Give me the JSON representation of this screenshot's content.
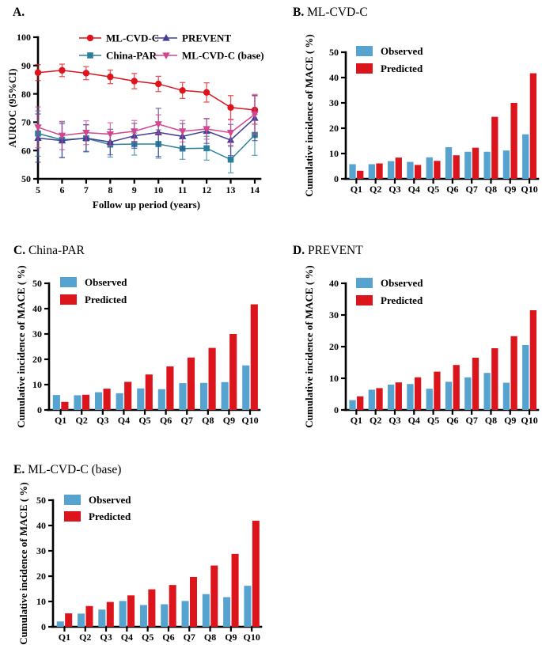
{
  "figure": {
    "panels": [
      {
        "id": "A",
        "label": "A.",
        "name": ""
      },
      {
        "id": "B",
        "label": "B.",
        "name": "ML-CVD-C"
      },
      {
        "id": "C",
        "label": "C.",
        "name": "China-PAR"
      },
      {
        "id": "D",
        "label": "D.",
        "name": "PREVENT"
      },
      {
        "id": "E",
        "label": "E.",
        "name": "ML-CVD-C (base)"
      }
    ]
  },
  "colors": {
    "red": "#dc141c",
    "bar_blue": "#57a3d0",
    "teal": "#2b7f9d",
    "purple": "#403e97",
    "magenta": "#d1478f",
    "axis": "#000000"
  },
  "chart_data": [
    {
      "panel": "A",
      "type": "line",
      "xlabel": "Follow up period (years)",
      "ylabel": "AUROC (95%CI)",
      "x": [
        5,
        6,
        7,
        8,
        9,
        10,
        11,
        12,
        13,
        14
      ],
      "xlim": [
        5,
        14
      ],
      "ylim": [
        50,
        100
      ],
      "yticks": [
        50,
        60,
        70,
        80,
        90,
        100
      ],
      "grid": false,
      "legend_position": "top-inside-two-columns",
      "series": [
        {
          "name": "ML-CVD-C",
          "marker": "circle",
          "color": "#dc141c",
          "values": [
            87.5,
            88.3,
            87.3,
            86.0,
            84.5,
            83.5,
            81.2,
            80.5,
            75.2,
            74.3
          ],
          "err": [
            2.8,
            2.2,
            2.3,
            2.4,
            2.7,
            2.7,
            2.8,
            3.4,
            4.2,
            5.0
          ]
        },
        {
          "name": "China-PAR",
          "marker": "square",
          "color": "#2b7f9d",
          "values": [
            66.0,
            63.8,
            64.3,
            62.1,
            62.3,
            62.3,
            60.7,
            60.8,
            56.8,
            65.5
          ],
          "err": [
            8.0,
            6.3,
            4.8,
            4.4,
            3.9,
            5.0,
            3.8,
            4.2,
            4.7,
            7.2
          ]
        },
        {
          "name": "PREVENT",
          "marker": "triangle-up",
          "color": "#403e97",
          "values": [
            64.4,
            63.5,
            64.4,
            63.0,
            65.2,
            66.4,
            65.0,
            66.9,
            63.7,
            71.5
          ],
          "err": [
            8.5,
            6.0,
            4.7,
            4.5,
            4.4,
            8.5,
            4.5,
            4.4,
            5.5,
            8.0
          ]
        },
        {
          "name": "ML-CVD-C (base)",
          "marker": "triangle-down",
          "color": "#d1478f",
          "values": [
            68.2,
            65.3,
            66.3,
            65.8,
            66.8,
            69.3,
            66.8,
            67.6,
            66.3,
            72.8
          ],
          "err": [
            7.2,
            5.0,
            4.2,
            4.0,
            3.8,
            3.3,
            3.8,
            3.6,
            4.5,
            7.0
          ]
        }
      ]
    },
    {
      "panel": "B",
      "type": "bar",
      "title": "ML-CVD-C",
      "ylabel": "Cumulative incidence of MACE ( %)",
      "categories": [
        "Q1",
        "Q2",
        "Q3",
        "Q4",
        "Q5",
        "Q6",
        "Q7",
        "Q8",
        "Q9",
        "Q10"
      ],
      "ylim": [
        0,
        50
      ],
      "yticks": [
        0,
        10,
        20,
        30,
        40,
        50
      ],
      "legend_position": "top-left-inside",
      "series": [
        {
          "name": "Observed",
          "color": "#57a3d0",
          "values": [
            5.8,
            5.8,
            7.0,
            6.7,
            8.5,
            12.5,
            10.7,
            10.7,
            11.2,
            17.6
          ]
        },
        {
          "name": "Predicted",
          "color": "#dc141c",
          "values": [
            3.2,
            6.1,
            8.4,
            5.5,
            7.1,
            9.3,
            12.3,
            24.5,
            30.0,
            41.7
          ]
        }
      ]
    },
    {
      "panel": "C",
      "type": "bar",
      "title": "China-PAR",
      "ylabel": "Cumulative incidence of MACE ( %)",
      "categories": [
        "Q1",
        "Q2",
        "Q3",
        "Q4",
        "Q5",
        "Q6",
        "Q7",
        "Q8",
        "Q9",
        "Q10"
      ],
      "ylim": [
        0,
        50
      ],
      "yticks": [
        0,
        10,
        20,
        30,
        40,
        50
      ],
      "legend_position": "top-left-inside",
      "series": [
        {
          "name": "Observed",
          "color": "#57a3d0",
          "values": [
            5.9,
            5.8,
            7.0,
            6.6,
            8.5,
            8.2,
            10.6,
            10.7,
            11.0,
            17.6
          ]
        },
        {
          "name": "Predicted",
          "color": "#dc141c",
          "values": [
            3.2,
            6.0,
            8.4,
            11.1,
            14.0,
            17.2,
            20.7,
            24.5,
            30.0,
            41.7
          ]
        }
      ]
    },
    {
      "panel": "D",
      "type": "bar",
      "title": "PREVENT",
      "ylabel": "Cumulative incidence of MACE ( %)",
      "categories": [
        "Q1",
        "Q2",
        "Q3",
        "Q4",
        "Q5",
        "Q6",
        "Q7",
        "Q8",
        "Q9",
        "Q10"
      ],
      "ylim": [
        0,
        40
      ],
      "yticks": [
        0,
        10,
        20,
        30,
        40
      ],
      "legend_position": "top-left-inside",
      "series": [
        {
          "name": "Observed",
          "color": "#57a3d0",
          "values": [
            3.1,
            6.4,
            8.0,
            8.2,
            6.7,
            8.9,
            10.3,
            11.7,
            8.6,
            20.5
          ]
        },
        {
          "name": "Predicted",
          "color": "#dc141c",
          "values": [
            4.3,
            6.9,
            8.7,
            10.3,
            12.1,
            14.2,
            16.5,
            19.5,
            23.3,
            31.5
          ]
        }
      ]
    },
    {
      "panel": "E",
      "type": "bar",
      "title": "ML-CVD-C (base)",
      "ylabel": "Cumulative incidence of MACE ( %)",
      "categories": [
        "Q1",
        "Q2",
        "Q3",
        "Q4",
        "Q5",
        "Q6",
        "Q7",
        "Q8",
        "Q9",
        "Q10"
      ],
      "ylim": [
        0,
        50
      ],
      "yticks": [
        0,
        10,
        20,
        30,
        40,
        50
      ],
      "legend_position": "top-left-inside",
      "series": [
        {
          "name": "Observed",
          "color": "#57a3d0",
          "values": [
            2.1,
            5.2,
            6.8,
            10.2,
            8.6,
            8.9,
            10.2,
            12.9,
            11.7,
            16.2
          ]
        },
        {
          "name": "Predicted",
          "color": "#dc141c",
          "values": [
            5.3,
            8.2,
            9.8,
            12.4,
            14.8,
            16.5,
            19.7,
            24.2,
            28.8,
            41.9
          ]
        }
      ]
    }
  ]
}
